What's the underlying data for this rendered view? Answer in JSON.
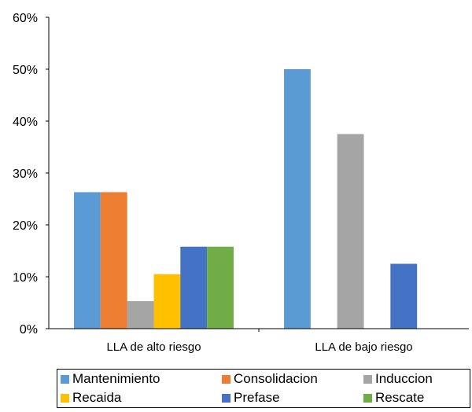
{
  "chart_data": {
    "type": "bar",
    "categories": [
      "LLA de alto riesgo",
      "LLA de bajo riesgo"
    ],
    "series": [
      {
        "name": "Mantenimiento",
        "color": "#5B9BD5",
        "values": [
          26.3,
          50
        ]
      },
      {
        "name": "Consolidacion",
        "color": "#ED7D31",
        "values": [
          26.3,
          0
        ]
      },
      {
        "name": "Induccion",
        "color": "#A5A5A5",
        "values": [
          5.3,
          37.5
        ]
      },
      {
        "name": "Recaida",
        "color": "#FFC000",
        "values": [
          10.5,
          0
        ]
      },
      {
        "name": "Prefase",
        "color": "#4472C4",
        "values": [
          15.8,
          12.5
        ]
      },
      {
        "name": "Rescate",
        "color": "#70AD47",
        "values": [
          15.8,
          0
        ]
      }
    ],
    "ylim": [
      0,
      60
    ],
    "yticks": [
      "0%",
      "10%",
      "20%",
      "30%",
      "40%",
      "50%",
      "60%"
    ],
    "grid": false,
    "legend_position": "bottom"
  }
}
